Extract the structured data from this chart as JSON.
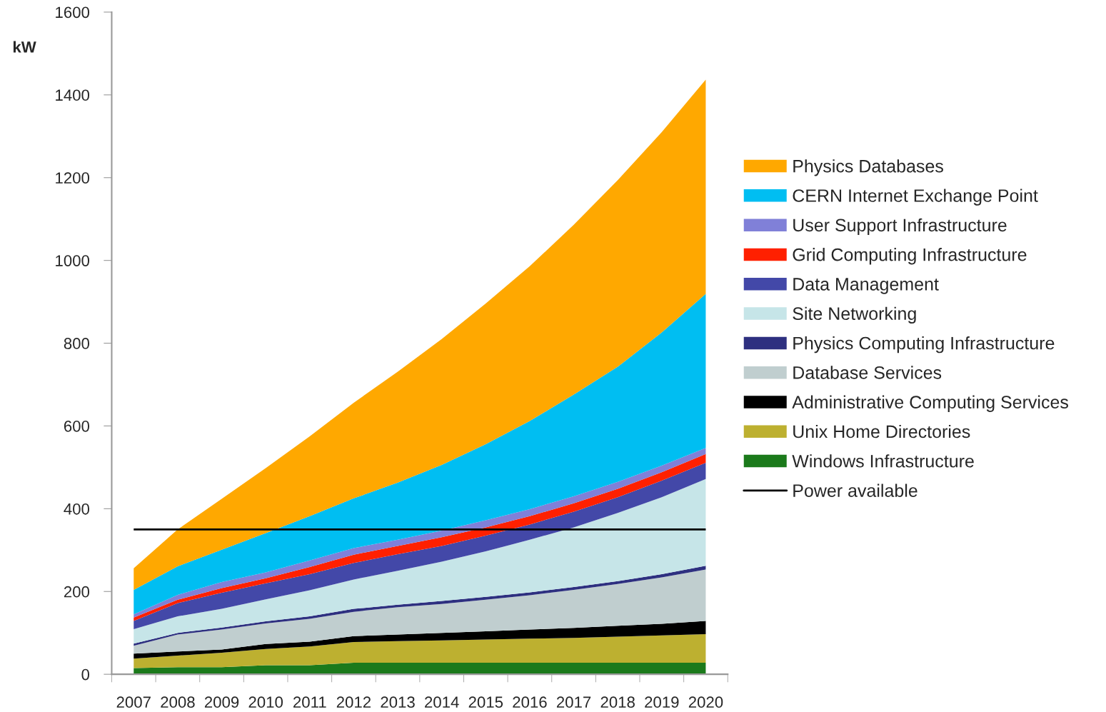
{
  "chart_data": {
    "type": "area",
    "stacked": true,
    "ylabel": "kW",
    "categories": [
      "2007",
      "2008",
      "2009",
      "2010",
      "2011",
      "2012",
      "2013",
      "2014",
      "2015",
      "2016",
      "2017",
      "2018",
      "2019",
      "2020"
    ],
    "series": [
      {
        "name": "Windows Infrastructure",
        "color": "#1b7a1b",
        "values": [
          15,
          17,
          17,
          22,
          22,
          28,
          28,
          28,
          28,
          28,
          28,
          28,
          28,
          28
        ]
      },
      {
        "name": "Unix Home Directories",
        "color": "#bdb030",
        "values": [
          23,
          28,
          35,
          39,
          45,
          50,
          52,
          54,
          56,
          58,
          60,
          63,
          66,
          69
        ]
      },
      {
        "name": "Administrative Computing Services",
        "color": "#000000",
        "values": [
          12,
          10,
          8,
          12,
          12,
          14,
          16,
          18,
          20,
          22,
          24,
          26,
          28,
          32
        ]
      },
      {
        "name": "Database Services",
        "color": "#c0cecf",
        "values": [
          19,
          41,
          48,
          50,
          55,
          59,
          66,
          70,
          76,
          83,
          92,
          101,
          112,
          124
        ]
      },
      {
        "name": "Physics Computing Infrastructure",
        "color": "#2e3080",
        "values": [
          5,
          4,
          5,
          5,
          6,
          7,
          6,
          7,
          7,
          7,
          7,
          7,
          8,
          9
        ]
      },
      {
        "name": "Site Networking",
        "color": "#c6e5e8",
        "values": [
          35,
          40,
          45,
          53,
          63,
          71,
          82,
          95,
          110,
          127,
          144,
          165,
          186,
          210
        ]
      },
      {
        "name": "Data Management",
        "color": "#4348a8",
        "values": [
          20,
          32,
          39,
          39,
          39,
          40,
          40,
          38,
          38,
          37,
          38,
          38,
          40,
          39
        ]
      },
      {
        "name": "Grid Computing Infrastructure",
        "color": "#ff2000",
        "values": [
          8,
          8,
          11,
          12,
          17,
          20,
          20,
          21,
          20,
          20,
          20,
          20,
          20,
          21
        ]
      },
      {
        "name": "User Support Infrastructure",
        "color": "#8080d8",
        "values": [
          8,
          12,
          15,
          14,
          16,
          16,
          15,
          16,
          17,
          17,
          17,
          17,
          16,
          15
        ]
      },
      {
        "name": "CERN Internet Exchange Point",
        "color": "#00bef2",
        "values": [
          59,
          69,
          78,
          95,
          107,
          120,
          138,
          159,
          184,
          213,
          246,
          278,
          322,
          372
        ]
      },
      {
        "name": "Physics Databases",
        "color": "#ffa800",
        "values": [
          52,
          89,
          123,
          157,
          193,
          231,
          268,
          304,
          340,
          374,
          410,
          451,
          484,
          518
        ]
      }
    ],
    "ref_lines": [
      {
        "axis": "y",
        "value": 350,
        "label": "Power available",
        "color": "#000000"
      }
    ],
    "ylim": [
      0,
      1600
    ],
    "yticks": [
      0,
      200,
      400,
      600,
      800,
      1000,
      1200,
      1400,
      1600
    ],
    "grid": false,
    "legend": "right"
  }
}
